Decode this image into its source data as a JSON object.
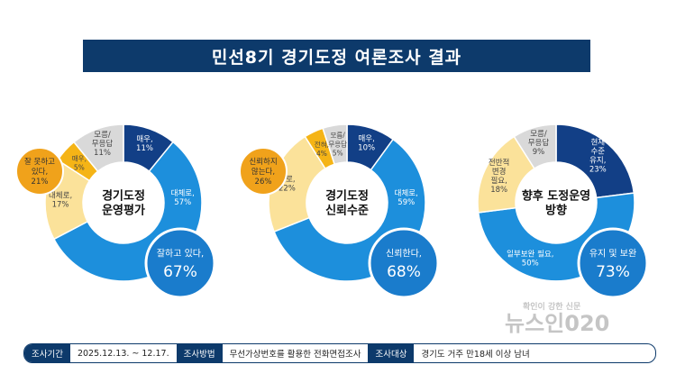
{
  "title": "민선8기 경기도정 여론조사 결과",
  "chart_data": [
    {
      "type": "pie",
      "center_label": [
        "경기도정",
        "운영평가"
      ],
      "slices": [
        {
          "label": "매우,",
          "value": 11,
          "color": "#123f86"
        },
        {
          "label": "대체로,",
          "value": 57,
          "color": "#1d8fdc"
        },
        {
          "label": "대체로,",
          "value": 17,
          "color": "#fbe29a"
        },
        {
          "label": "매우,",
          "value": 5,
          "color": "#f5b416"
        },
        {
          "label": "모름/ 무응답",
          "value": 11,
          "color": "#d9d9d9"
        }
      ],
      "positive": {
        "label": "잘하고 있다,",
        "value": 67,
        "color": "#1a7ccc"
      },
      "negative": {
        "label": "잘 못하고 있다,",
        "value": 21,
        "color": "#f0a21b"
      }
    },
    {
      "type": "pie",
      "center_label": [
        "경기도정",
        "신뢰수준"
      ],
      "slices": [
        {
          "label": "매우,",
          "value": 10,
          "color": "#123f86"
        },
        {
          "label": "대체로,",
          "value": 59,
          "color": "#1d8fdc"
        },
        {
          "label": "별로,",
          "value": 22,
          "color": "#fbe29a"
        },
        {
          "label": "전혀,",
          "value": 4,
          "color": "#f5b416"
        },
        {
          "label": "모름/ 무응답",
          "value": 5,
          "color": "#d9d9d9"
        }
      ],
      "positive": {
        "label": "신뢰한다,",
        "value": 68,
        "color": "#1a7ccc"
      },
      "negative": {
        "label": "신뢰하지 않는다,",
        "value": 26,
        "color": "#f0a21b"
      }
    },
    {
      "type": "pie",
      "center_label": [
        "향후 도정운영",
        "방향"
      ],
      "slices": [
        {
          "label": "현재 수준 유지,",
          "value": 23,
          "color": "#123f86"
        },
        {
          "label": "일부보완 필요,",
          "value": 50,
          "color": "#1d8fdc"
        },
        {
          "label": "전반적 변경 필요,",
          "value": 18,
          "color": "#fbe29a"
        },
        {
          "label": "모름/ 무응답",
          "value": 9,
          "color": "#d9d9d9"
        }
      ],
      "positive": {
        "label": "유지 및 보완",
        "value": 73,
        "color": "#1a7ccc"
      }
    }
  ],
  "footer": [
    {
      "label": "조사기간",
      "value": "2025.12.13. ~ 12.17."
    },
    {
      "label": "조사방법",
      "value": "무선가상번호를 활용한 전화면접조사"
    },
    {
      "label": "조사대상",
      "value": "경기도 거주 만18세 이상 남녀"
    }
  ],
  "watermark": {
    "slogan": "확인이 강한 신문",
    "brand": "뉴스인020"
  }
}
